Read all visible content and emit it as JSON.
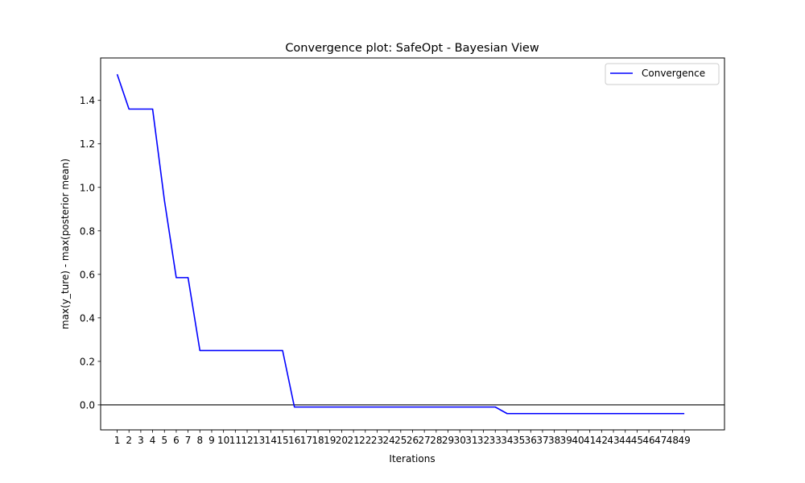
{
  "chart_data": {
    "type": "line",
    "title": "Convergence plot: SafeOpt - Bayesian View",
    "xlabel": "Iterations",
    "ylabel": "max(y_ture) - max(posterior mean)",
    "x": [
      1,
      2,
      3,
      4,
      5,
      6,
      7,
      8,
      9,
      10,
      11,
      12,
      13,
      14,
      15,
      16,
      17,
      18,
      19,
      20,
      21,
      22,
      23,
      24,
      25,
      26,
      27,
      28,
      29,
      30,
      31,
      32,
      33,
      34,
      35,
      36,
      37,
      38,
      39,
      40,
      41,
      42,
      43,
      44,
      45,
      46,
      47,
      48,
      49
    ],
    "x_tick_labels": [
      "1",
      "2",
      "3",
      "4",
      "5",
      "6",
      "7",
      "8",
      "9",
      "10",
      "11",
      "12",
      "13",
      "14",
      "15",
      "16",
      "17",
      "18",
      "19",
      "20",
      "21",
      "22",
      "23",
      "24",
      "25",
      "26",
      "27",
      "28",
      "29",
      "30",
      "31",
      "32",
      "33",
      "34",
      "35",
      "36",
      "37",
      "38",
      "39",
      "40",
      "41",
      "42",
      "43",
      "44",
      "45",
      "46",
      "47",
      "48",
      "49"
    ],
    "y_ticks": [
      0.0,
      0.2,
      0.4,
      0.6,
      0.8,
      1.0,
      1.2,
      1.4
    ],
    "y_tick_labels": [
      "0.0",
      "0.2",
      "0.4",
      "0.6",
      "0.8",
      "1.0",
      "1.2",
      "1.4"
    ],
    "xlim": [
      -0.4,
      52.4
    ],
    "ylim": [
      -0.115,
      1.595
    ],
    "hline": 0.0,
    "grid": false,
    "legend_position": "upper-right",
    "series": [
      {
        "name": "Convergence",
        "color": "#0000ff",
        "values": [
          1.52,
          1.36,
          1.36,
          1.36,
          0.94,
          0.585,
          0.585,
          0.25,
          0.25,
          0.25,
          0.25,
          0.25,
          0.25,
          0.25,
          0.25,
          -0.01,
          -0.01,
          -0.01,
          -0.01,
          -0.01,
          -0.01,
          -0.01,
          -0.01,
          -0.01,
          -0.01,
          -0.01,
          -0.01,
          -0.01,
          -0.01,
          -0.01,
          -0.01,
          -0.01,
          -0.01,
          -0.04,
          -0.04,
          -0.04,
          -0.04,
          -0.04,
          -0.04,
          -0.04,
          -0.04,
          -0.04,
          -0.04,
          -0.04,
          -0.04,
          -0.04,
          -0.04,
          -0.04,
          -0.04
        ]
      }
    ]
  }
}
